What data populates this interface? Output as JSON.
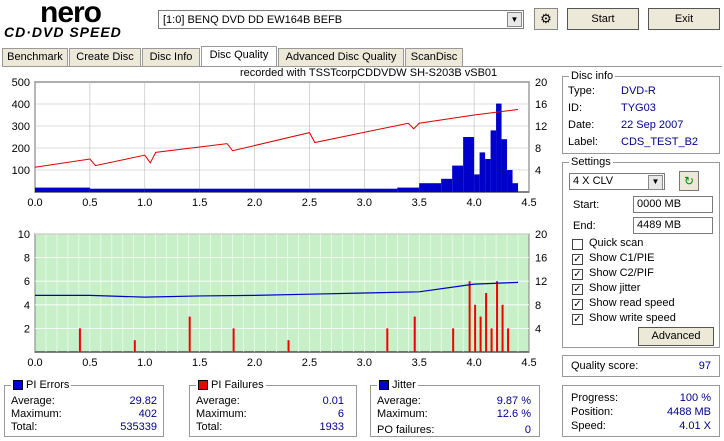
{
  "header": {
    "logo_main": "nero",
    "logo_sub": "CD·DVD SPEED",
    "drive": "[1:0]   BENQ DVD DD EW164B BEFB",
    "start_label": "Start",
    "exit_label": "Exit"
  },
  "tabs": [
    {
      "label": "Benchmark"
    },
    {
      "label": "Create Disc"
    },
    {
      "label": "Disc Info"
    },
    {
      "label": "Disc Quality"
    },
    {
      "label": "Advanced Disc Quality"
    },
    {
      "label": "ScanDisc"
    }
  ],
  "graph": {
    "recorded_with": "recorded with TSSTcorpCDDVDW SH-S203B   vSB01"
  },
  "disc_info": {
    "title": "Disc info",
    "type_label": "Type:",
    "type": "DVD-R",
    "id_label": "ID:",
    "id": "TYG03",
    "date_label": "Date:",
    "date": "22 Sep 2007",
    "disc_label_label": "Label:",
    "disc_label": "CDS_TEST_B2"
  },
  "settings": {
    "title": "Settings",
    "speed": "4 X CLV",
    "start_label": "Start:",
    "start": "0000 MB",
    "end_label": "End:",
    "end": "4489 MB",
    "checks": [
      {
        "label": "Quick scan",
        "checked": false
      },
      {
        "label": "Show C1/PIE",
        "checked": true
      },
      {
        "label": "Show C2/PIF",
        "checked": true
      },
      {
        "label": "Show jitter",
        "checked": true
      },
      {
        "label": "Show read speed",
        "checked": true
      },
      {
        "label": "Show write speed",
        "checked": true
      }
    ],
    "advanced_label": "Advanced"
  },
  "quality": {
    "label": "Quality score:",
    "value": "97"
  },
  "progress": {
    "progress_label": "Progress:",
    "progress": "100 %",
    "position_label": "Position:",
    "position": "4488 MB",
    "speed_label": "Speed:",
    "speed": "4.01 X"
  },
  "pi_errors": {
    "title": "PI Errors",
    "color": "#0000cc",
    "avg_label": "Average:",
    "avg": "29.82",
    "max_label": "Maximum:",
    "max": "402",
    "total_label": "Total:",
    "total": "535339"
  },
  "pi_failures": {
    "title": "PI Failures",
    "color": "#ee0000",
    "avg_label": "Average:",
    "avg": "0.01",
    "max_label": "Maximum:",
    "max": "6",
    "total_label": "Total:",
    "total": "1933"
  },
  "jitter": {
    "title": "Jitter",
    "color": "#0000cc",
    "avg_label": "Average:",
    "avg": "9.87 %",
    "max_label": "Maximum:",
    "max": "12.6 %",
    "po_label": "PO failures:",
    "po": "0"
  },
  "chart_data": [
    {
      "type": "area",
      "x_ticks": [
        "0.0",
        "0.5",
        "1.0",
        "1.5",
        "2.0",
        "2.5",
        "3.0",
        "3.5",
        "4.0",
        "4.5"
      ],
      "y_left_ticks": [
        "500",
        "400",
        "300",
        "200",
        "100"
      ],
      "y_right_ticks": [
        "20",
        "16",
        "12",
        "8",
        "4"
      ],
      "xlim": [
        0,
        4.5
      ],
      "ylim_left": [
        0,
        500
      ],
      "ylim_right": [
        0,
        20
      ],
      "series": [
        {
          "values_x": [
            0.0,
            0.5,
            1.0,
            1.5,
            2.0,
            2.5,
            3.0,
            3.3,
            3.5,
            3.7,
            3.8,
            3.9,
            4.0,
            4.05,
            4.1,
            4.15,
            4.2,
            4.25,
            4.3,
            4.35,
            4.4
          ],
          "values_y": [
            20,
            15,
            15,
            15,
            15,
            15,
            15,
            20,
            40,
            60,
            120,
            250,
            80,
            180,
            150,
            280,
            402,
            240,
            100,
            40,
            80
          ]
        },
        {
          "values_x": [
            0.0,
            0.5,
            0.55,
            1.0,
            1.05,
            1.1,
            1.75,
            1.8,
            2.5,
            2.55,
            3.4,
            3.45,
            3.5,
            4.0,
            4.4
          ],
          "values_y": [
            4.5,
            6,
            4.8,
            6.7,
            5.3,
            7.2,
            8.8,
            7.5,
            10.8,
            9,
            12.5,
            11.5,
            12.5,
            14,
            15
          ]
        }
      ]
    },
    {
      "type": "bar",
      "x_ticks": [
        "0.0",
        "0.5",
        "1.0",
        "1.5",
        "2.0",
        "2.5",
        "3.0",
        "3.5",
        "4.0",
        "4.5"
      ],
      "y_left_ticks": [
        "10",
        "8",
        "6",
        "4",
        "2"
      ],
      "y_right_ticks": [
        "20",
        "16",
        "12",
        "8",
        "4"
      ],
      "xlim": [
        0,
        4.5
      ],
      "ylim_left": [
        0,
        10
      ],
      "ylim_right": [
        0,
        20
      ],
      "series": [
        {
          "values_x": [
            0.4,
            0.9,
            1.4,
            1.8,
            2.3,
            3.2,
            3.45,
            3.8,
            3.95,
            4.0,
            4.05,
            4.1,
            4.15,
            4.2,
            4.25,
            4.3
          ],
          "values_y": [
            2,
            1,
            3,
            2,
            1,
            2,
            3,
            2,
            6,
            4,
            3,
            5,
            2,
            6,
            4,
            2
          ]
        },
        {
          "values_x": [
            0.0,
            0.5,
            1.0,
            1.5,
            2.0,
            2.5,
            3.0,
            3.5,
            4.0,
            4.4
          ],
          "values_y": [
            9.6,
            9.6,
            9.3,
            9.5,
            9.6,
            9.8,
            10.0,
            10.2,
            11.5,
            11.8
          ]
        }
      ]
    }
  ]
}
